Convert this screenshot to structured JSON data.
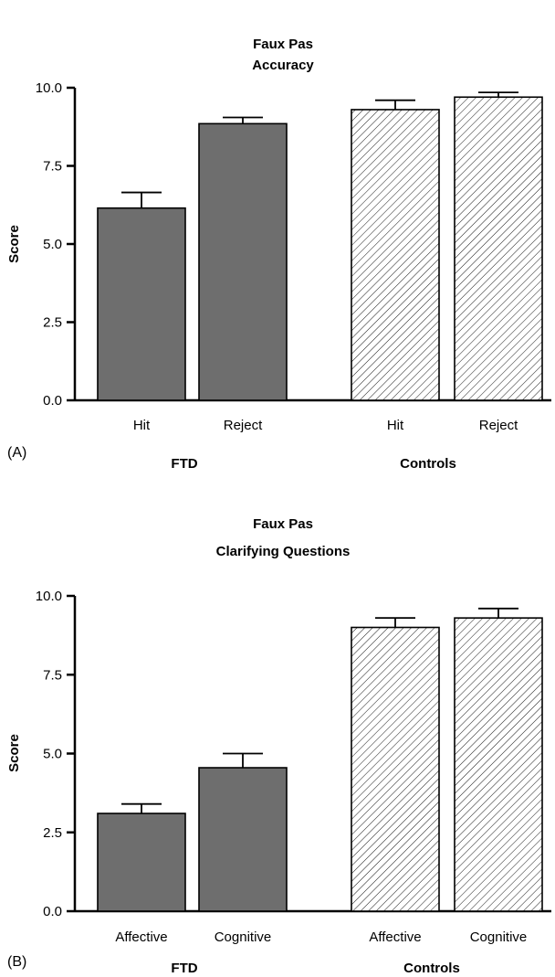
{
  "chart_data": [
    {
      "type": "bar",
      "panel_label": "(A)",
      "title": "Faux Pas",
      "subtitle": "Accuracy",
      "ylabel": "Score",
      "xlabel": "",
      "ylim": [
        0,
        10
      ],
      "yticks": [
        "0.0",
        "2.5",
        "5.0",
        "7.5",
        "10.0"
      ],
      "grid": false,
      "groups": [
        {
          "name": "FTD",
          "fill": "solid",
          "categories": [
            "Hit",
            "Reject"
          ],
          "values": [
            6.15,
            8.85
          ],
          "errors": [
            0.5,
            0.2
          ]
        },
        {
          "name": "Controls",
          "fill": "hatched",
          "categories": [
            "Hit",
            "Reject"
          ],
          "values": [
            9.3,
            9.7
          ],
          "errors": [
            0.3,
            0.15
          ]
        }
      ]
    },
    {
      "type": "bar",
      "panel_label": "(B)",
      "title": "Faux Pas",
      "subtitle": "Clarifying Questions",
      "ylabel": "Score",
      "xlabel": "",
      "ylim": [
        0,
        10
      ],
      "yticks": [
        "0.0",
        "2.5",
        "5.0",
        "7.5",
        "10.0"
      ],
      "grid": false,
      "groups": [
        {
          "name": "FTD",
          "fill": "solid",
          "categories": [
            "Affective",
            "Cognitive"
          ],
          "values": [
            3.1,
            4.55
          ],
          "errors": [
            0.3,
            0.45
          ]
        },
        {
          "name": "Controls",
          "fill": "hatched",
          "categories": [
            "Affective",
            "Cognitive"
          ],
          "values": [
            9.0,
            9.3
          ],
          "errors": [
            0.3,
            0.3
          ]
        }
      ]
    }
  ],
  "colors": {
    "ftd_fill": "#6e6e6e",
    "controls_fill": "#ffffff",
    "axis": "#000000"
  }
}
